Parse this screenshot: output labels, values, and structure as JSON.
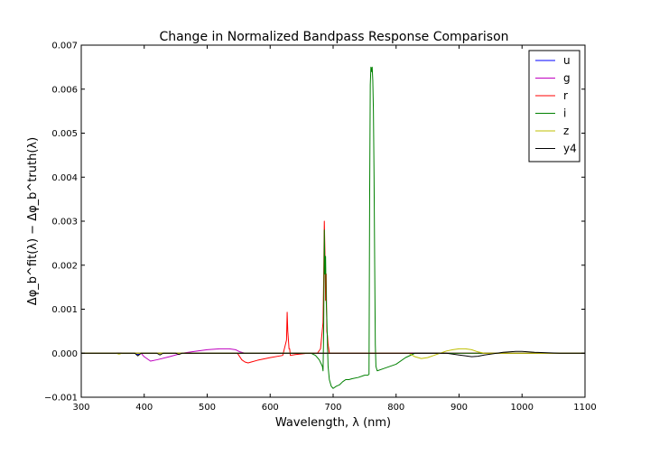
{
  "chart_data": {
    "type": "line",
    "title": "Change in Normalized Bandpass Response Comparison",
    "xlabel": "Wavelength, λ (nm)",
    "ylabel": "Δφ_b^fit(λ) − Δφ_b^truth(λ)",
    "xlim": [
      300,
      1100
    ],
    "ylim": [
      -0.001,
      0.007
    ],
    "xticks": [
      300,
      400,
      500,
      600,
      700,
      800,
      900,
      1000,
      1100
    ],
    "xtick_labels": [
      "300",
      "400",
      "500",
      "600",
      "700",
      "800",
      "900",
      "1000",
      "1100"
    ],
    "yticks": [
      -0.001,
      0.0,
      0.001,
      0.002,
      0.003,
      0.004,
      0.005,
      0.006,
      0.007
    ],
    "ytick_labels": [
      "−0.001",
      "0.000",
      "0.001",
      "0.002",
      "0.003",
      "0.004",
      "0.005",
      "0.006",
      "0.007"
    ],
    "grid": false,
    "legend_position": "top-right",
    "series": [
      {
        "name": "u",
        "color": "#0000ff",
        "x": [
          300,
          350,
          385,
          390,
          395,
          400,
          1100
        ],
        "y": [
          0,
          0,
          0,
          -3e-05,
          0,
          0,
          0
        ]
      },
      {
        "name": "g",
        "color": "#bf00bf",
        "x": [
          300,
          395,
          400,
          410,
          420,
          440,
          460,
          480,
          500,
          520,
          535,
          545,
          552,
          560,
          1100
        ],
        "y": [
          0,
          0,
          -8e-05,
          -0.00018,
          -0.00015,
          -8e-05,
          0.0,
          4e-05,
          8e-05,
          0.0001,
          0.0001,
          8e-05,
          3e-05,
          0,
          0
        ]
      },
      {
        "name": "r",
        "color": "#ff0000",
        "x": [
          300,
          548,
          555,
          560,
          565,
          570,
          580,
          600,
          620,
          626,
          627,
          628,
          629,
          630,
          631,
          632,
          640,
          660,
          675,
          680,
          684,
          685,
          686,
          687,
          688,
          689,
          690,
          691,
          692,
          694,
          1100
        ],
        "y": [
          0,
          0,
          -0.00015,
          -0.0002,
          -0.00022,
          -0.0002,
          -0.00016,
          -0.0001,
          -5e-05,
          0.0003,
          0.00093,
          0.0005,
          0.0003,
          0.0001,
          0.0001,
          -5e-05,
          -3e-05,
          0,
          0,
          0.0001,
          0.0007,
          0.0017,
          0.003,
          0.0023,
          0.0012,
          0.0018,
          0.0005,
          0.0004,
          0.0002,
          0,
          0
        ]
      },
      {
        "name": "i",
        "color": "#008000",
        "x": [
          300,
          665,
          672,
          678,
          683,
          684,
          685,
          686,
          687,
          688,
          689,
          690,
          691,
          692,
          694,
          697,
          700,
          705,
          710,
          715,
          720,
          725,
          730,
          740,
          750,
          755,
          757,
          758,
          759,
          760,
          761,
          762,
          763,
          764,
          765,
          766,
          767,
          768,
          770,
          780,
          800,
          815,
          830,
          1100
        ],
        "y": [
          0,
          0,
          -5e-05,
          -0.00015,
          -0.0003,
          -0.0004,
          0.0005,
          0.0028,
          0.0018,
          0.0022,
          0.0012,
          0.0008,
          0.0002,
          -0.0003,
          -0.0006,
          -0.00075,
          -0.0008,
          -0.00075,
          -0.00072,
          -0.00065,
          -0.0006,
          -0.0006,
          -0.00058,
          -0.00055,
          -0.0005,
          -0.0005,
          -0.00048,
          0.0035,
          0.0061,
          0.0065,
          0.0064,
          0.0065,
          0.0062,
          0.0055,
          0.004,
          0.002,
          0.0002,
          -0.0003,
          -0.0004,
          -0.00035,
          -0.00025,
          -0.0001,
          0,
          0
        ]
      },
      {
        "name": "z",
        "color": "#bfbf00",
        "x": [
          300,
          355,
          360,
          365,
          820,
          830,
          840,
          850,
          860,
          870,
          880,
          890,
          900,
          910,
          920,
          930,
          940,
          950,
          1100
        ],
        "y": [
          0,
          0,
          -2e-05,
          0,
          0,
          -8e-05,
          -0.00012,
          -0.0001,
          -5e-05,
          0,
          5e-05,
          8e-05,
          0.0001,
          0.0001,
          8e-05,
          3e-05,
          0,
          0,
          0
        ]
      },
      {
        "name": "y4",
        "color": "#000000",
        "x": [
          300,
          385,
          390,
          395,
          420,
          425,
          430,
          450,
          455,
          460,
          880,
          890,
          900,
          910,
          920,
          930,
          940,
          950,
          960,
          970,
          980,
          990,
          1000,
          1010,
          1020,
          1040,
          1060,
          1100
        ],
        "y": [
          0,
          0,
          -6e-05,
          0,
          0,
          -4e-05,
          0,
          0,
          -3e-05,
          0,
          0,
          -2e-05,
          -4e-05,
          -6e-05,
          -8e-05,
          -7e-05,
          -4e-05,
          -2e-05,
          0,
          2e-05,
          3e-05,
          4e-05,
          4e-05,
          3e-05,
          2e-05,
          1e-05,
          0,
          0
        ]
      }
    ]
  }
}
